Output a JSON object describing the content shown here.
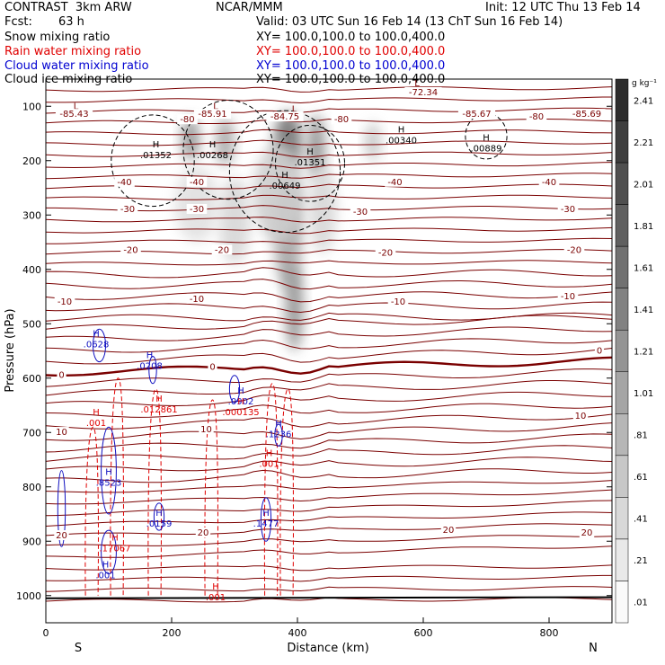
{
  "header": {
    "model": "CONTRAST  3km ARW",
    "org": "NCAR/MMM",
    "init": "Init: 12 UTC Thu 13 Feb 14",
    "fcst_label": "Fcst:",
    "fcst_value": "63 h",
    "valid": "Valid: 03 UTC Sun 16 Feb 14 (13 ChT Sun 16 Feb 14)"
  },
  "legend": [
    {
      "name": "Snow mixing ratio",
      "xy": "XY= 100.0,100.0 to 100.0,400.0",
      "color": "#000000"
    },
    {
      "name": "Rain water mixing ratio",
      "xy": "XY= 100.0,100.0 to 100.0,400.0",
      "color": "#e00000"
    },
    {
      "name": "Cloud water mixing ratio",
      "xy": "XY= 100.0,100.0 to 100.0,400.0",
      "color": "#0000d0"
    },
    {
      "name": "Cloud ice mixing ratio",
      "xy": "XY= 100.0,100.0 to 100.0,400.0",
      "color": "#000000"
    }
  ],
  "colors": {
    "temperature": "#7a0000",
    "rain": "#e00000",
    "cloud_water": "#1010c0",
    "cloud_ice": "#000000"
  },
  "chart_data": {
    "type": "contour",
    "xlabel": "Distance (km)",
    "ylabel": "Pressure (hPa)",
    "x_ticks": [
      0,
      200,
      400,
      600,
      800
    ],
    "y_ticks": [
      100,
      200,
      300,
      400,
      500,
      600,
      700,
      800,
      900,
      1000
    ],
    "xlim": [
      0,
      900
    ],
    "ylim": [
      50,
      1050
    ],
    "y_reversed": true,
    "x_end_labels": {
      "left": "S",
      "right": "N"
    },
    "colorbar": {
      "unit": "g kg⁻¹",
      "labels": [
        "2.41",
        "2.21",
        "2.01",
        "1.81",
        "1.61",
        "1.41",
        "1.21",
        "1.01",
        ".81",
        ".61",
        ".41",
        ".21",
        ".01"
      ]
    },
    "temperature_labels": [
      {
        "x": 45,
        "p": 118,
        "text": "-85.43"
      },
      {
        "x": 265,
        "p": 118,
        "text": "-85.91"
      },
      {
        "x": 380,
        "p": 123,
        "text": "-84.75"
      },
      {
        "x": 600,
        "p": 78,
        "text": "-72.34"
      },
      {
        "x": 685,
        "p": 118,
        "text": "-85.67"
      },
      {
        "x": 860,
        "p": 118,
        "text": "-85.69"
      },
      {
        "x": 225,
        "p": 128,
        "text": "-80"
      },
      {
        "x": 470,
        "p": 128,
        "text": "-80"
      },
      {
        "x": 780,
        "p": 123,
        "text": "-80"
      },
      {
        "x": 125,
        "p": 243,
        "text": "-40"
      },
      {
        "x": 240,
        "p": 243,
        "text": "-40"
      },
      {
        "x": 555,
        "p": 243,
        "text": "-40"
      },
      {
        "x": 800,
        "p": 243,
        "text": "-40"
      },
      {
        "x": 130,
        "p": 293,
        "text": "-30"
      },
      {
        "x": 240,
        "p": 293,
        "text": "-30"
      },
      {
        "x": 500,
        "p": 298,
        "text": "-30"
      },
      {
        "x": 830,
        "p": 293,
        "text": "-30"
      },
      {
        "x": 135,
        "p": 368,
        "text": "-20"
      },
      {
        "x": 280,
        "p": 368,
        "text": "-20"
      },
      {
        "x": 540,
        "p": 373,
        "text": "-20"
      },
      {
        "x": 840,
        "p": 368,
        "text": "-20"
      },
      {
        "x": 30,
        "p": 463,
        "text": "-10"
      },
      {
        "x": 240,
        "p": 458,
        "text": "-10"
      },
      {
        "x": 560,
        "p": 463,
        "text": "-10"
      },
      {
        "x": 830,
        "p": 453,
        "text": "-10"
      },
      {
        "x": 25,
        "p": 598,
        "text": "0"
      },
      {
        "x": 265,
        "p": 583,
        "text": "0"
      },
      {
        "x": 880,
        "p": 553,
        "text": "0"
      },
      {
        "x": 25,
        "p": 703,
        "text": "10"
      },
      {
        "x": 255,
        "p": 698,
        "text": "10"
      },
      {
        "x": 850,
        "p": 673,
        "text": "10"
      },
      {
        "x": 25,
        "p": 893,
        "text": "20"
      },
      {
        "x": 250,
        "p": 888,
        "text": "20"
      },
      {
        "x": 640,
        "p": 883,
        "text": "20"
      },
      {
        "x": 860,
        "p": 888,
        "text": "20"
      }
    ],
    "lows": [
      {
        "x": 48,
        "p": 105
      },
      {
        "x": 270,
        "p": 105
      },
      {
        "x": 395,
        "p": 110
      },
      {
        "x": 590,
        "p": 63
      }
    ],
    "ice_maxima": [
      {
        "x": 175,
        "p": 192,
        "text": ".01352"
      },
      {
        "x": 265,
        "p": 192,
        "text": ".00268"
      },
      {
        "x": 380,
        "p": 248,
        "text": ".00649"
      },
      {
        "x": 420,
        "p": 205,
        "text": ".01351"
      },
      {
        "x": 565,
        "p": 165,
        "text": ".00340"
      },
      {
        "x": 700,
        "p": 180,
        "text": ".00889"
      }
    ],
    "cloud_water_maxima": [
      {
        "x": 80,
        "p": 540,
        "text": ".0628"
      },
      {
        "x": 165,
        "p": 580,
        "text": ".0208"
      },
      {
        "x": 310,
        "p": 645,
        "text": ".0902"
      },
      {
        "x": 370,
        "p": 705,
        "text": ".1236"
      },
      {
        "x": 100,
        "p": 795,
        "text": ".8523"
      },
      {
        "x": 180,
        "p": 870,
        "text": ".0159"
      },
      {
        "x": 350,
        "p": 870,
        "text": ".1477"
      },
      {
        "x": 95,
        "p": 965,
        "text": ".001"
      }
    ],
    "rain_maxima": [
      {
        "x": 180,
        "p": 660,
        "text": ".012861"
      },
      {
        "x": 310,
        "p": 665,
        "text": ".000135"
      },
      {
        "x": 80,
        "p": 685,
        "text": ".001"
      },
      {
        "x": 355,
        "p": 760,
        "text": ".001"
      },
      {
        "x": 110,
        "p": 915,
        "text": ".17067"
      },
      {
        "x": 270,
        "p": 1005,
        "text": ".001"
      }
    ],
    "snow_field": [
      {
        "x": 230,
        "p": 160,
        "rx": 14,
        "rp": 40,
        "v": 0.55
      },
      {
        "x": 285,
        "p": 165,
        "rx": 14,
        "rp": 45,
        "v": 0.45
      },
      {
        "x": 385,
        "p": 165,
        "rx": 22,
        "rp": 55,
        "v": 0.7
      },
      {
        "x": 430,
        "p": 175,
        "rx": 14,
        "rp": 60,
        "v": 0.55
      },
      {
        "x": 520,
        "p": 165,
        "rx": 12,
        "rp": 35,
        "v": 0.3
      },
      {
        "x": 385,
        "p": 330,
        "rx": 22,
        "rp": 110,
        "v": 0.45
      },
      {
        "x": 395,
        "p": 470,
        "rx": 14,
        "rp": 80,
        "v": 0.55
      },
      {
        "x": 300,
        "p": 310,
        "rx": 25,
        "rp": 80,
        "v": 0.2
      },
      {
        "x": 240,
        "p": 280,
        "rx": 35,
        "rp": 70,
        "v": 0.15
      },
      {
        "x": 370,
        "p": 260,
        "rx": 40,
        "rp": 90,
        "v": 0.25
      },
      {
        "x": 440,
        "p": 290,
        "rx": 22,
        "rp": 80,
        "v": 0.2
      }
    ]
  }
}
